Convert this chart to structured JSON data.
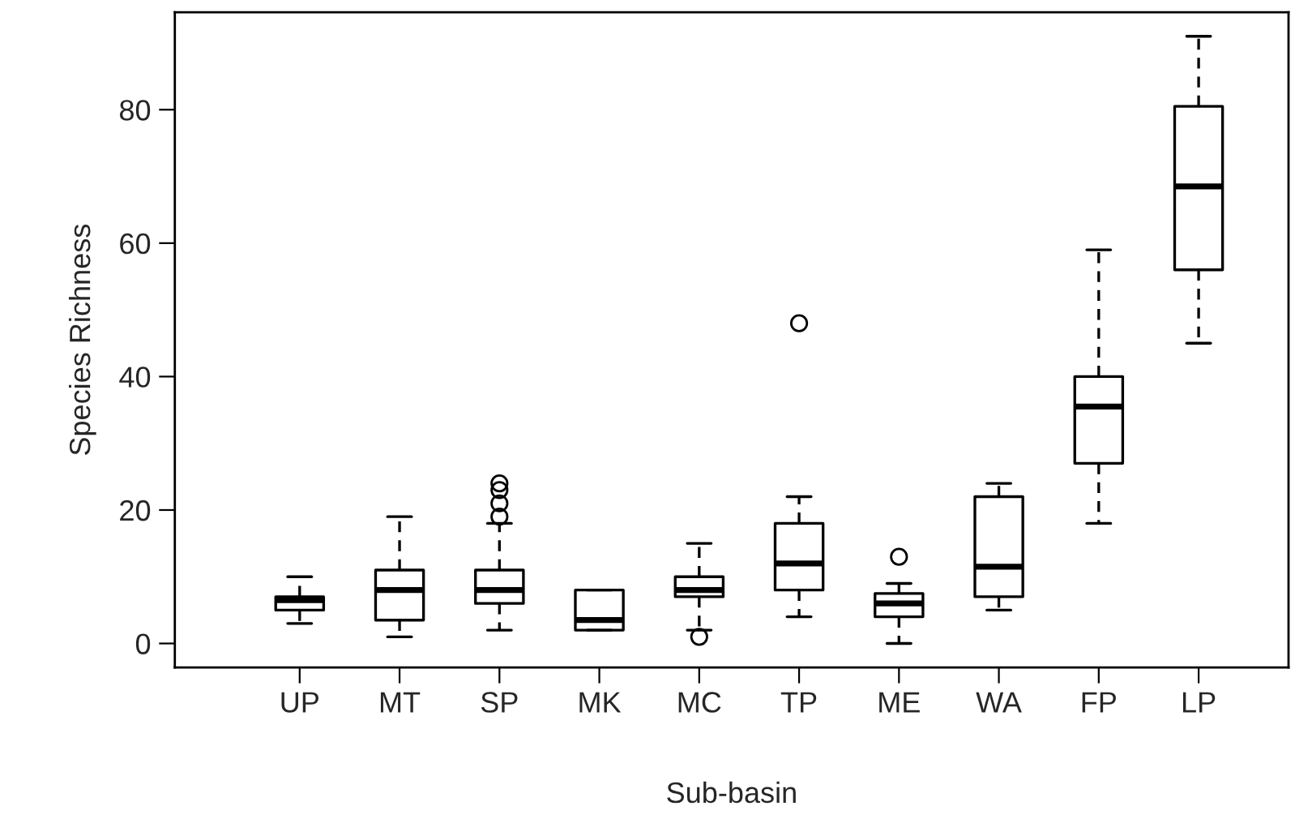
{
  "chart_data": {
    "type": "box",
    "xlabel": "Sub-basin",
    "ylabel": "Species Richness",
    "categories": [
      "UP",
      "MT",
      "SP",
      "MK",
      "MC",
      "TP",
      "ME",
      "WA",
      "FP",
      "LP"
    ],
    "boxes": [
      {
        "low": 3,
        "q1": 5,
        "median": 6.5,
        "q3": 7,
        "high": 10
      },
      {
        "low": 1,
        "q1": 3.5,
        "median": 8,
        "q3": 11,
        "high": 19
      },
      {
        "low": 2,
        "q1": 6,
        "median": 8,
        "q3": 11,
        "high": 18,
        "outliers": [
          19,
          21,
          23,
          24
        ]
      },
      {
        "low": 2,
        "q1": 2,
        "median": 3.5,
        "q3": 8,
        "high": 8
      },
      {
        "low": 2,
        "q1": 7,
        "median": 8,
        "q3": 10,
        "high": 15,
        "outliers": [
          1
        ]
      },
      {
        "low": 4,
        "q1": 8,
        "median": 12,
        "q3": 18,
        "high": 22,
        "outliers": [
          48
        ]
      },
      {
        "low": 0,
        "q1": 4,
        "median": 6,
        "q3": 7.5,
        "high": 9,
        "outliers": [
          13
        ]
      },
      {
        "low": 5,
        "q1": 7,
        "median": 11.5,
        "q3": 22,
        "high": 24
      },
      {
        "low": 18,
        "q1": 27,
        "median": 35.5,
        "q3": 40,
        "high": 59
      },
      {
        "low": 45,
        "q1": 56,
        "median": 68.5,
        "q3": 80.5,
        "high": 91
      }
    ],
    "color": "#000000",
    "ylim": [
      -3.6,
      94.6
    ],
    "yticks": [
      0,
      20,
      40,
      60,
      80
    ],
    "grid": false,
    "legend": false
  }
}
